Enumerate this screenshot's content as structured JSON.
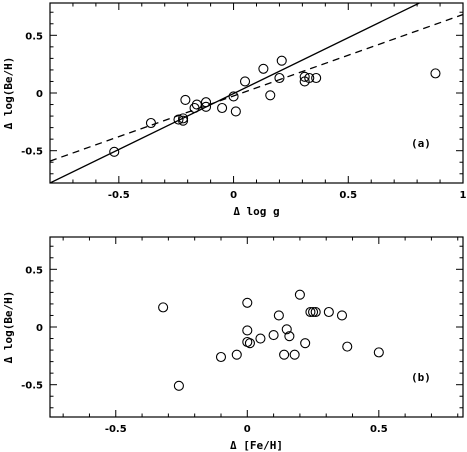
{
  "chart_data": [
    {
      "type": "scatter",
      "panel_label": "(a)",
      "xlabel": "Δ log g",
      "ylabel": "Δ log(Be/H)",
      "xlim": [
        -0.8,
        1.0
      ],
      "ylim": [
        -0.78,
        0.78
      ],
      "xticks": [
        -0.5,
        0,
        0.5,
        1
      ],
      "xtick_labels": [
        "-0.5",
        "0",
        "0.5",
        "1"
      ],
      "yticks": [
        -0.5,
        0,
        0.5
      ],
      "ytick_labels": [
        "-0.5",
        "0",
        "0.5"
      ],
      "grid": false,
      "points": [
        {
          "x": -0.52,
          "y": -0.51
        },
        {
          "x": -0.36,
          "y": -0.26
        },
        {
          "x": -0.24,
          "y": -0.23
        },
        {
          "x": -0.22,
          "y": -0.22
        },
        {
          "x": -0.22,
          "y": -0.24
        },
        {
          "x": -0.21,
          "y": -0.06
        },
        {
          "x": -0.17,
          "y": -0.13
        },
        {
          "x": -0.16,
          "y": -0.1
        },
        {
          "x": -0.12,
          "y": -0.08
        },
        {
          "x": -0.12,
          "y": -0.12
        },
        {
          "x": -0.05,
          "y": -0.13
        },
        {
          "x": 0.0,
          "y": -0.03
        },
        {
          "x": 0.01,
          "y": -0.16
        },
        {
          "x": 0.05,
          "y": 0.1
        },
        {
          "x": 0.13,
          "y": 0.21
        },
        {
          "x": 0.16,
          "y": -0.02
        },
        {
          "x": 0.2,
          "y": 0.13
        },
        {
          "x": 0.21,
          "y": 0.28
        },
        {
          "x": 0.31,
          "y": 0.1
        },
        {
          "x": 0.31,
          "y": 0.14
        },
        {
          "x": 0.33,
          "y": 0.13
        },
        {
          "x": 0.36,
          "y": 0.13
        },
        {
          "x": 0.88,
          "y": 0.17
        }
      ],
      "lines": [
        {
          "style": "solid",
          "x": [
            -0.8,
            0.81
          ],
          "y": [
            -0.78,
            0.78
          ]
        },
        {
          "style": "dashed",
          "x": [
            -0.8,
            1.0
          ],
          "y": [
            -0.59,
            0.68
          ]
        }
      ]
    },
    {
      "type": "scatter",
      "panel_label": "(b)",
      "xlabel": "Δ [Fe/H]",
      "ylabel": "Δ log(Be/H)",
      "xlim": [
        -0.75,
        0.82
      ],
      "ylim": [
        -0.78,
        0.78
      ],
      "xticks": [
        -0.5,
        0,
        0.5
      ],
      "xtick_labels": [
        "-0.5",
        "0",
        "0.5"
      ],
      "yticks": [
        -0.5,
        0,
        0.5
      ],
      "ytick_labels": [
        "-0.5",
        "0",
        "0.5"
      ],
      "grid": false,
      "points": [
        {
          "x": -0.32,
          "y": 0.17
        },
        {
          "x": -0.26,
          "y": -0.51
        },
        {
          "x": -0.1,
          "y": -0.26
        },
        {
          "x": -0.04,
          "y": -0.24
        },
        {
          "x": 0.0,
          "y": 0.21
        },
        {
          "x": 0.0,
          "y": -0.03
        },
        {
          "x": 0.0,
          "y": -0.13
        },
        {
          "x": 0.01,
          "y": -0.14
        },
        {
          "x": 0.05,
          "y": -0.1
        },
        {
          "x": 0.1,
          "y": -0.07
        },
        {
          "x": 0.12,
          "y": 0.1
        },
        {
          "x": 0.14,
          "y": -0.24
        },
        {
          "x": 0.15,
          "y": -0.02
        },
        {
          "x": 0.16,
          "y": -0.08
        },
        {
          "x": 0.18,
          "y": -0.24
        },
        {
          "x": 0.2,
          "y": 0.28
        },
        {
          "x": 0.22,
          "y": -0.14
        },
        {
          "x": 0.24,
          "y": 0.13
        },
        {
          "x": 0.25,
          "y": 0.13
        },
        {
          "x": 0.26,
          "y": 0.13
        },
        {
          "x": 0.31,
          "y": 0.13
        },
        {
          "x": 0.36,
          "y": 0.1
        },
        {
          "x": 0.38,
          "y": -0.17
        },
        {
          "x": 0.5,
          "y": -0.22
        }
      ],
      "lines": []
    }
  ]
}
